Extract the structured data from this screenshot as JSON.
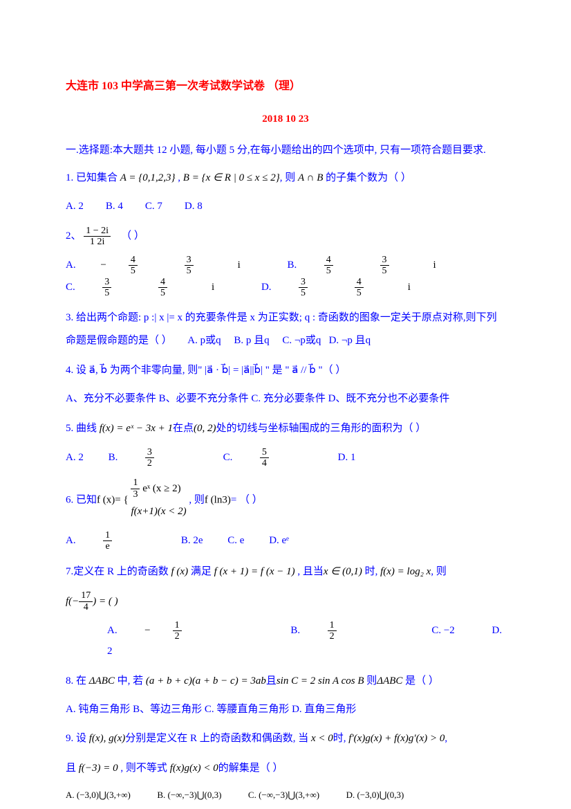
{
  "title": "大连市 103 中学高三第一次考试数学试卷 （理）",
  "date": "2018  10  23",
  "section_header": "一.选择题:本大题共 12 小题, 每小题 5 分,在每小题给出的四个选项中, 只有一项符合题目要求.",
  "q1_pre": "1. 已知集合 ",
  "q1_set1": "A = {0,1,2,3}",
  "q1_mid": " , ",
  "q1_set2": "B = {x ∈ R | 0 ≤ x ≤ 2}",
  "q1_post": ",  则 ",
  "q1_expr": "A ∩ B",
  "q1_end": " 的子集个数为（    ）",
  "q1_opts": {
    "a": "A.  2",
    "b": "B.  4",
    "c": "C.  7",
    "d": "D.  8"
  },
  "q2_pre": "2、 ",
  "q2_end": "（       ）",
  "q2_frac_num": "1 − 2i",
  "q2_frac_den": "1  2i",
  "q2a_pre": "A. ",
  "q2a_sign": "−",
  "q2a_n1": "4",
  "q2a_d1": "5",
  "q2a_n2": "3",
  "q2a_d2": "5",
  "q2a_i": "i",
  "q2b": "B.",
  "q2c": "C.",
  "q2d": "D.",
  "q2b_n1": "4",
  "q2b_d1": "5",
  "q2b_n2": "3",
  "q2b_d2": "5",
  "q2c_n1": "3",
  "q2c_d1": "5",
  "q2c_n2": "4",
  "q2c_d2": "5",
  "q2d_n1": "3",
  "q2d_d1": "5",
  "q2d_n2": "4",
  "q2d_d2": "5",
  "q3_text": "3. 给出两个命题:  p :| x |= x 的充要条件是 x 为正实数;   q :  奇函数的图象一定关于原点对称,则下列命题是假命题的是（   ）",
  "q3_opts": {
    "a": "A.  p或q",
    "b": "B.  p 且q",
    "c": "C. ¬p或q",
    "d": "D. ¬p 且q"
  },
  "q4_text": "4. 设 a⃗, b⃗ 为两个非零向量, 则\" |a⃗ · b⃗| = |a⃗||b⃗| \" 是 \" a⃗ // b⃗ \"（       ）",
  "q4_opts": "A、充分不必要条件 B、必要不充分条件 C. 充分必要条件 D、既不充分也不必要条件",
  "q5_pre": "5. 曲线 ",
  "q5_fx": "f(x) = eˣ − 3x + 1",
  "q5_mid": "在点",
  "q5_pt": "(0, 2)",
  "q5_end": "处的切线与坐标轴围成的三角形的面积为（   ）",
  "q5_opts": {
    "a": "A.  2",
    "b": "B.",
    "c": "C.",
    "d": "D.  1"
  },
  "q5b_n": "3",
  "q5b_d": "2",
  "q5c_n": "5",
  "q5c_d": "4",
  "q6_pre": "6. 已知",
  "q6_fx": "f (x)",
  "q6_eq": "= {",
  "q6_top_pre": "",
  "q6_top_n": "1",
  "q6_top_d": "3",
  "q6_top_post": "eˣ (x ≥ 2)",
  "q6_bot": "f(x+1)(x < 2)",
  "q6_mid": ", 则",
  "q6_fln": "f (ln3)",
  "q6_end": "=         （       ）",
  "q6_opts": {
    "a": "A.",
    "b": "B.   2e",
    "c": "C.   e",
    "d": "D.   eᵉ"
  },
  "q6a_n": "1",
  "q6a_d": "e",
  "q7_pre": "7.定义在 R 上的奇函数 ",
  "q7_fx": "f (x)",
  "q7_mid1": " 满足 ",
  "q7_eq1": "f (x + 1) = f (x − 1)",
  "q7_mid2": " , 且当",
  "q7_dom": "x ∈ (0,1)",
  "q7_mid3": " 时, ",
  "q7_def": "f(x) = log₂ x",
  "q7_end1": ", 则",
  "q7_f17": "f(−",
  "q7_f17n": "17",
  "q7_f17d": "4",
  "q7_f17end": ") = (        )",
  "q7_opts": {
    "a": "A.",
    "b": "B.",
    "c": "C. −2",
    "d": "D.   2"
  },
  "q7a_sign": "−",
  "q7a_n": "1",
  "q7a_d": "2",
  "q7b_n": "1",
  "q7b_d": "2",
  "q8_pre": "8. 在 ",
  "q8_tri": "ΔABC",
  "q8_mid1": " 中, 若 ",
  "q8_eq": "(a + b + c)(a + b − c) = 3ab",
  "q8_mid2": "且",
  "q8_eq2": "sin C = 2 sin A cos B",
  "q8_mid3": " 则",
  "q8_tri2": "ΔABC",
  "q8_end": " 是（    ）",
  "q8_opts": "A. 钝角三角形 B、等边三角形  C. 等腰直角三角形  D. 直角三角形",
  "q9_pre": "9. 设 ",
  "q9_fg": "f(x), g(x)",
  "q9_mid1": "分别是定义在 R 上的奇函数和偶函数, 当 ",
  "q9_cond": "x < 0",
  "q9_mid2": "时, ",
  "q9_ineq": "f'(x)g(x) + f(x)g'(x) > 0",
  "q9_end1": ",",
  "q9_line2_pre": "且 ",
  "q9_f3": "f(−3) = 0",
  "q9_line2_mid": " , 则不等式 ",
  "q9_ineq2": "f(x)g(x) < 0",
  "q9_line2_end": "的解集是（   ）",
  "q9_opts": {
    "a": "A. (−3,0)⋃(3,+∞)",
    "b": "B. (−∞,−3)⋃(0,3)",
    "c": "C. (−∞,−3)⋃(3,+∞)",
    "d": "D. (−3,0)⋃(0,3)"
  }
}
